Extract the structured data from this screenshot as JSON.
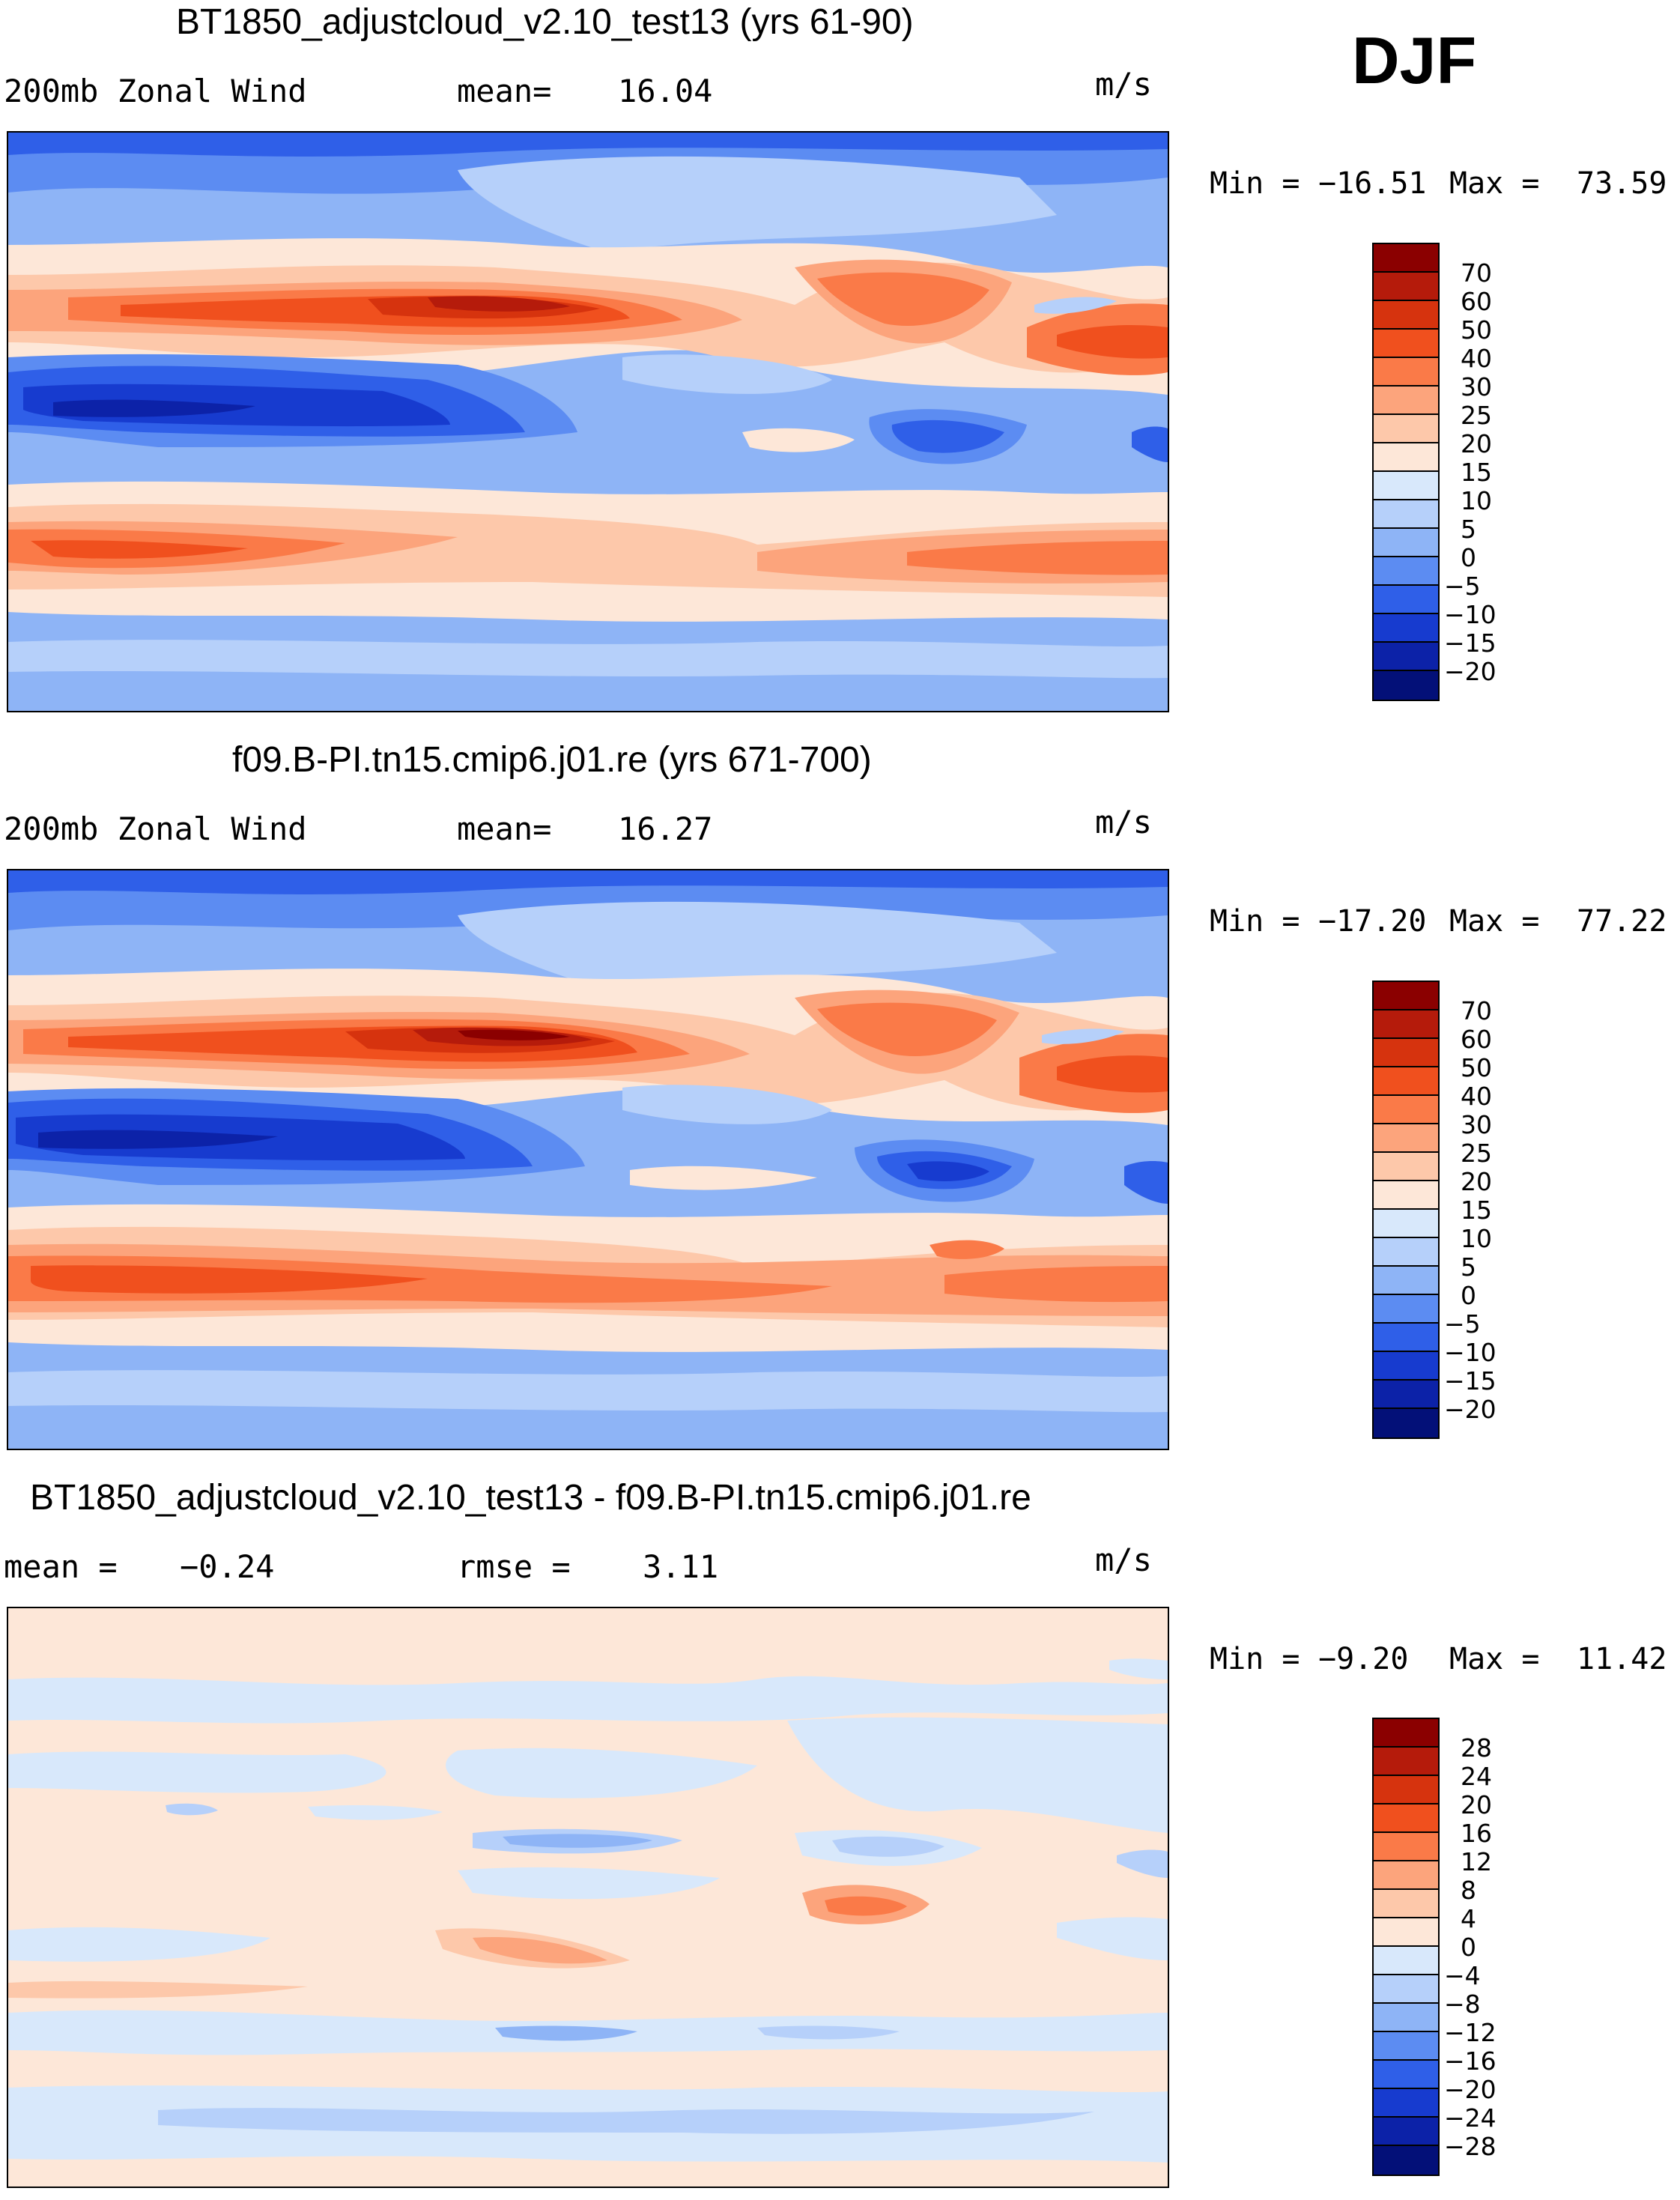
{
  "season": "DJF",
  "panels": [
    {
      "title": "BT1850_adjustcloud_v2.10_test13 (yrs 61-90)",
      "left_label": "200mb Zonal Wind",
      "stat_label": "mean=",
      "stat_value": "16.04",
      "units": "m/s",
      "min_label": "Min =",
      "min_value": "−16.51",
      "max_label": "Max =",
      "max_value": "73.59",
      "colorbar": {
        "labels": [
          "70",
          "60",
          "50",
          "40",
          "30",
          "25",
          "20",
          "15",
          "10",
          "5",
          "0",
          "−5",
          "−10",
          "−15",
          "−20"
        ],
        "colors": [
          "#8b0000",
          "#b51b0b",
          "#d6330e",
          "#f0501e",
          "#fa7a48",
          "#fca47c",
          "#fdc8aa",
          "#fde7d8",
          "#d8e8fb",
          "#b6d0fa",
          "#8eb4f6",
          "#5c8cf2",
          "#2f5fe8",
          "#173bcf",
          "#0c22a8",
          "#031078"
        ]
      },
      "map": {
        "description_zones": [
          {
            "band": "polar-north",
            "value": 5
          },
          {
            "band": "subtropical-jet-north",
            "value": 60
          },
          {
            "band": "equatorial",
            "value": -10
          },
          {
            "band": "southern-midlatitude",
            "value": 30
          },
          {
            "band": "polar-south",
            "value": 5
          }
        ]
      }
    },
    {
      "title": "f09.B-PI.tn15.cmip6.j01.re (yrs 671-700)",
      "left_label": "200mb Zonal Wind",
      "stat_label": "mean=",
      "stat_value": "16.27",
      "units": "m/s",
      "min_label": "Min =",
      "min_value": "−17.20",
      "max_label": "Max =",
      "max_value": "77.22",
      "colorbar": {
        "labels": [
          "70",
          "60",
          "50",
          "40",
          "30",
          "25",
          "20",
          "15",
          "10",
          "5",
          "0",
          "−5",
          "−10",
          "−15",
          "−20"
        ],
        "colors": [
          "#8b0000",
          "#b51b0b",
          "#d6330e",
          "#f0501e",
          "#fa7a48",
          "#fca47c",
          "#fdc8aa",
          "#fde7d8",
          "#d8e8fb",
          "#b6d0fa",
          "#8eb4f6",
          "#5c8cf2",
          "#2f5fe8",
          "#173bcf",
          "#0c22a8",
          "#031078"
        ]
      }
    },
    {
      "title": "BT1850_adjustcloud_v2.10_test13 - f09.B-PI.tn15.cmip6.j01.re",
      "left_label": "mean =",
      "left_value": "−0.24",
      "stat_label": "rmse =",
      "stat_value": "3.11",
      "units": "m/s",
      "min_label": "Min =",
      "min_value": "−9.20",
      "max_label": "Max =",
      "max_value": "11.42",
      "colorbar": {
        "labels": [
          "28",
          "24",
          "20",
          "16",
          "12",
          "8",
          "4",
          "0",
          "−4",
          "−8",
          "−12",
          "−16",
          "−20",
          "−24",
          "−28"
        ],
        "colors": [
          "#8b0000",
          "#b51b0b",
          "#d6330e",
          "#f0501e",
          "#fa7a48",
          "#fca47c",
          "#fdc8aa",
          "#fde7d8",
          "#d8e8fb",
          "#b6d0fa",
          "#8eb4f6",
          "#5c8cf2",
          "#2f5fe8",
          "#173bcf",
          "#0c22a8",
          "#031078"
        ]
      }
    }
  ]
}
